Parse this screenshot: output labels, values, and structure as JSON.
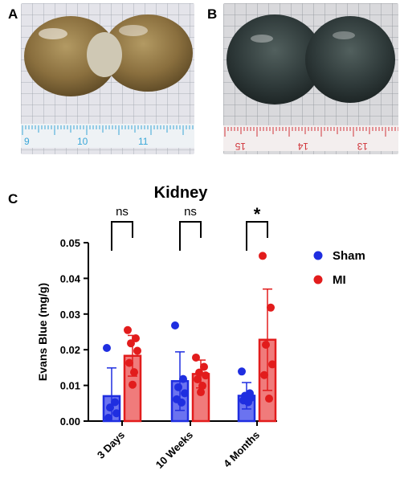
{
  "panels": {
    "a_label": "A",
    "b_label": "B",
    "c_label": "C"
  },
  "photos": {
    "a": {
      "ruler_labels": [
        "9",
        "10",
        "11"
      ],
      "ruler_color": "#3aa7d8",
      "kidney_color": "#8a6f3e"
    },
    "b": {
      "ruler_labels": [
        "15",
        "14",
        "13"
      ],
      "ruler_color": "#d0343a",
      "kidney_color": "#2f3a3a"
    }
  },
  "chart_data": {
    "type": "bar",
    "title": "Kidney",
    "ylabel": "Evans Blue (mg/g)",
    "xlabel": "",
    "categories": [
      "3 Days",
      "10 Weeks",
      "4 Months"
    ],
    "ylim": [
      0,
      0.05
    ],
    "yticks": [
      "0.00",
      "0.01",
      "0.02",
      "0.03",
      "0.04",
      "0.05"
    ],
    "ytick_values": [
      0,
      0.01,
      0.02,
      0.03,
      0.04,
      0.05
    ],
    "legend_position": "right",
    "series": [
      {
        "name": "Sham",
        "color": "#1f2ee0",
        "fill": "#6b73f0",
        "means": [
          0.007,
          0.0112,
          0.0071
        ],
        "sd": [
          0.0079,
          0.0082,
          0.0037
        ],
        "points": [
          [
            0.0205,
            0.0053,
            0.0038,
            0.0022,
            0.0009
          ],
          [
            0.0268,
            0.0118,
            0.0095,
            0.0078,
            0.0061,
            0.0052
          ],
          [
            0.0139,
            0.0078,
            0.0071,
            0.0066,
            0.0058,
            0.0053
          ]
        ]
      },
      {
        "name": "MI",
        "color": "#e21c1c",
        "fill": "#f07b7b",
        "means": [
          0.0183,
          0.0132,
          0.0228
        ],
        "sd": [
          0.0057,
          0.0039,
          0.0142
        ],
        "points": [
          [
            0.0255,
            0.0232,
            0.0218,
            0.0197,
            0.0163,
            0.0137,
            0.0102
          ],
          [
            0.0178,
            0.0152,
            0.0136,
            0.0128,
            0.0117,
            0.0099,
            0.0081
          ],
          [
            0.0463,
            0.0318,
            0.0214,
            0.0159,
            0.0129,
            0.0063
          ]
        ]
      }
    ],
    "significance": [
      "ns",
      "ns",
      "*"
    ]
  }
}
